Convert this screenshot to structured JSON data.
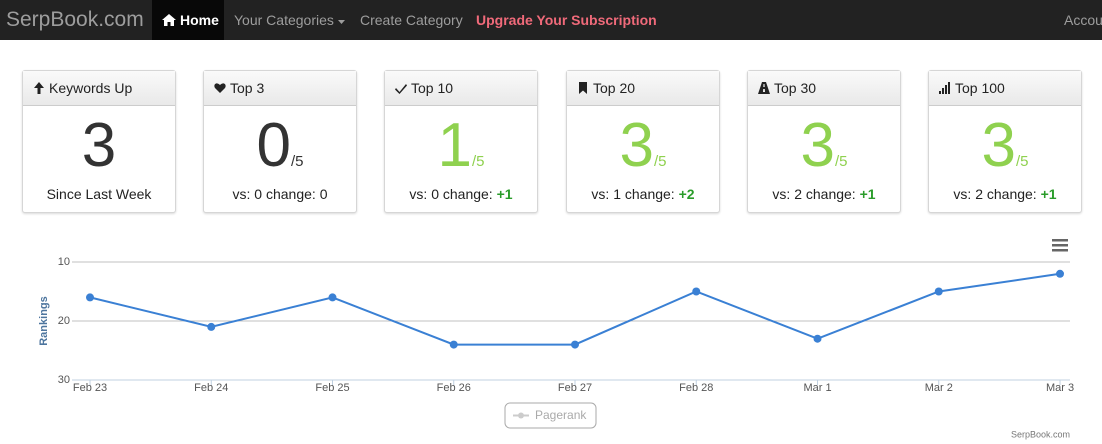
{
  "nav": {
    "brand": "SerpBook.com",
    "items": [
      "Home",
      "Your Categories",
      "Create Category",
      "Upgrade Your Subscription",
      "Account"
    ]
  },
  "cards": [
    {
      "title": "Keywords Up",
      "value": 3,
      "footer": "Since Last Week",
      "color": "#333333"
    },
    {
      "title": "Top 3",
      "value": 0,
      "suffix": "/5",
      "footer": "vs: 0 change:",
      "change": "0",
      "color": "#333333"
    },
    {
      "title": "Top 10",
      "value": 1,
      "suffix": "/5",
      "footer": "vs: 0 change:",
      "change": "+1",
      "color": "#8fd14f"
    },
    {
      "title": "Top 20",
      "value": 3,
      "suffix": "/5",
      "footer": "vs: 1 change:",
      "change": "+2",
      "color": "#8fd14f"
    },
    {
      "title": "Top 30",
      "value": 3,
      "suffix": "/5",
      "footer": "vs: 2 change:",
      "change": "+1",
      "color": "#8fd14f"
    },
    {
      "title": "Top 100",
      "value": 3,
      "suffix": "/5",
      "footer": "vs: 2 change:",
      "change": "+1",
      "color": "#8fd14f"
    }
  ],
  "chart_data": {
    "type": "line",
    "y_label": "Rankings",
    "categories": [
      "Feb 23",
      "Feb 24",
      "Feb 25",
      "Feb 26",
      "Feb 27",
      "Feb 28",
      "Mar 1",
      "Mar 2",
      "Mar 3"
    ],
    "series": [
      {
        "name": "Pagerank",
        "color": "#3a80d4",
        "values": [
          16,
          21,
          16,
          24,
          24,
          15,
          23,
          15,
          12
        ]
      }
    ],
    "ylim": [
      30,
      10
    ],
    "yticks": [
      10,
      20,
      30
    ],
    "grid": true,
    "credit": "SerpBook.com"
  }
}
